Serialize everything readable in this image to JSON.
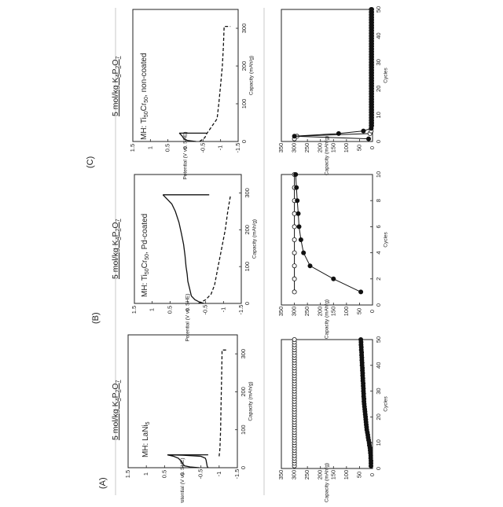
{
  "panels": [
    {
      "label": "(A)",
      "electrolyte": "5 mol/kg K2P2O7",
      "mh": "MH: LaNi5",
      "potential_chart": {
        "type": "line",
        "xlabel": "Capacity (mAh/g)",
        "ylabel": "Potential (V vs. SHE)",
        "xlim": [
          0,
          350
        ],
        "ylim": [
          -1.5,
          1.5
        ],
        "xticks": [
          0,
          100,
          200,
          300
        ],
        "yticks": [
          1.5,
          1.0,
          0.5,
          0.0,
          -0.5,
          -1.0,
          -1.5
        ],
        "series": [
          {
            "style": "solid",
            "x": [
              0,
              2,
              5,
              10,
              18,
              25,
              30,
              33,
              34,
              33,
              30,
              25,
              20,
              15,
              10,
              5,
              2,
              0
            ],
            "y": [
              -0.45,
              -0.2,
              -0.05,
              0.0,
              0.05,
              0.12,
              0.25,
              0.38,
              0.42,
              0.0,
              -0.5,
              -0.62,
              -0.64,
              -0.65,
              -0.66,
              -0.67,
              -0.68,
              -0.7
            ]
          },
          {
            "style": "solid",
            "x": [
              34,
              34
            ],
            "y": [
              0.42,
              -0.7
            ]
          },
          {
            "style": "dashed",
            "x": [
              30,
              50,
              100,
              150,
              200,
              250,
              300,
              310,
              310
            ],
            "y": [
              -1.0,
              -1.02,
              -1.04,
              -1.05,
              -1.06,
              -1.07,
              -1.08,
              -1.08,
              -1.24
            ]
          }
        ]
      },
      "cycle_chart": {
        "type": "scatter",
        "xlabel": "Cycles",
        "ylabel": "Capacity (mAh/g)",
        "xlim": [
          0,
          50
        ],
        "ylim": [
          0,
          350
        ],
        "xticks": [
          0,
          10,
          20,
          30,
          40,
          50
        ],
        "yticks": [
          350,
          300,
          250,
          200,
          150,
          100,
          50,
          0
        ],
        "series": [
          {
            "marker": "open",
            "x": [
              1,
              2,
              3,
              4,
              5,
              6,
              7,
              8,
              9,
              10,
              11,
              12,
              13,
              14,
              15,
              16,
              17,
              18,
              19,
              20,
              21,
              22,
              23,
              24,
              25,
              26,
              27,
              28,
              29,
              30,
              31,
              32,
              33,
              34,
              35,
              36,
              37,
              38,
              39,
              40,
              41,
              42,
              43,
              44,
              45,
              46,
              47,
              48,
              49,
              50
            ],
            "y": [
              300,
              300,
              300,
              300,
              300,
              300,
              300,
              300,
              300,
              300,
              300,
              300,
              300,
              300,
              300,
              300,
              300,
              300,
              300,
              300,
              300,
              300,
              300,
              300,
              300,
              300,
              300,
              300,
              300,
              300,
              300,
              300,
              300,
              300,
              300,
              300,
              300,
              300,
              300,
              300,
              300,
              300,
              300,
              300,
              300,
              300,
              300,
              300,
              300,
              300
            ]
          },
          {
            "marker": "filled",
            "x": [
              1,
              2,
              3,
              4,
              5,
              6,
              7,
              8,
              9,
              10,
              11,
              12,
              13,
              14,
              15,
              16,
              17,
              18,
              19,
              20,
              21,
              22,
              23,
              24,
              25,
              26,
              27,
              28,
              29,
              30,
              31,
              32,
              33,
              34,
              35,
              36,
              37,
              38,
              39,
              40,
              41,
              42,
              43,
              44,
              45,
              46,
              47,
              48,
              49,
              50
            ],
            "y": [
              6,
              6,
              6,
              7,
              7,
              8,
              9,
              10,
              12,
              13,
              15,
              17,
              18,
              20,
              22,
              23,
              24,
              25,
              26,
              27,
              28,
              29,
              30,
              31,
              32,
              33,
              33,
              34,
              34,
              35,
              35,
              36,
              36,
              37,
              37,
              38,
              38,
              39,
              39,
              40,
              40,
              41,
              41,
              42,
              42,
              43,
              43,
              44,
              44,
              45
            ]
          }
        ]
      }
    },
    {
      "label": "(B)",
      "electrolyte": "5 mol/kg K2P2O7",
      "mh": "MH: Ti50Cr50, Pd-coated",
      "potential_chart": {
        "type": "line",
        "xlabel": "Capacity (mAh/g)",
        "ylabel": "Potential (V vs. SHE)",
        "xlim": [
          0,
          350
        ],
        "ylim": [
          -1.5,
          1.5
        ],
        "xticks": [
          0,
          100,
          200,
          300
        ],
        "yticks": [
          1.5,
          1.0,
          0.5,
          0.0,
          -0.5,
          -1.0,
          -1.5
        ],
        "series": [
          {
            "style": "solid",
            "x": [
              0,
              5,
              10,
              20,
              40,
              60,
              80,
              100,
              130,
              160,
              190,
              220,
              250,
              270,
              280,
              290,
              295
            ],
            "y": [
              -0.45,
              -0.3,
              -0.2,
              -0.1,
              -0.05,
              0.0,
              0.02,
              0.05,
              0.08,
              0.12,
              0.18,
              0.25,
              0.35,
              0.45,
              0.55,
              0.65,
              0.7
            ]
          },
          {
            "style": "solid",
            "x": [
              295,
              295
            ],
            "y": [
              0.7,
              -0.6
            ]
          },
          {
            "style": "dashed",
            "x": [
              0,
              10,
              25,
              50,
              100,
              150,
              200,
              250,
              295
            ],
            "y": [
              -0.3,
              -0.5,
              -0.65,
              -0.75,
              -0.85,
              -0.95,
              -1.05,
              -1.12,
              -1.2
            ]
          }
        ]
      },
      "cycle_chart": {
        "type": "scatter",
        "xlabel": "Cycles",
        "ylabel": "Capacity (mAh/g)",
        "xlim": [
          0,
          10
        ],
        "ylim": [
          0,
          350
        ],
        "xticks": [
          0,
          2,
          4,
          6,
          8,
          10
        ],
        "yticks": [
          350,
          300,
          250,
          200,
          150,
          100,
          50,
          0
        ],
        "series": [
          {
            "marker": "open",
            "x": [
              1,
              2,
              3,
              4,
              5,
              6,
              7,
              8,
              9,
              10
            ],
            "y": [
              300,
              300,
              300,
              300,
              300,
              300,
              300,
              300,
              300,
              300
            ]
          },
          {
            "marker": "filled",
            "x": [
              1,
              2,
              3,
              4,
              5,
              6,
              7,
              8,
              9,
              10
            ],
            "y": [
              45,
              150,
              240,
              265,
              275,
              282,
              285,
              289,
              292,
              295
            ]
          }
        ]
      }
    },
    {
      "label": "(C)",
      "electrolyte": "5 mol/kg K2P2O7",
      "mh": "MH: Ti50Cr50, non-coated",
      "potential_chart": {
        "type": "line",
        "xlabel": "Capacity (mAh/g)",
        "ylabel": "Potential (V vs. SHE)",
        "xlim": [
          0,
          350
        ],
        "ylim": [
          -1.5,
          1.5
        ],
        "xticks": [
          0,
          100,
          200,
          300
        ],
        "yticks": [
          1.5,
          1.0,
          0.5,
          0.0,
          -0.5,
          -1.0,
          -1.5
        ],
        "series": [
          {
            "style": "solid",
            "x": [
              0,
              3,
              8,
              15,
              20,
              22
            ],
            "y": [
              -0.3,
              -0.05,
              0.05,
              0.1,
              0.15,
              0.18
            ]
          },
          {
            "style": "solid",
            "x": [
              22,
              22
            ],
            "y": [
              0.18,
              -0.6
            ]
          },
          {
            "style": "dashed",
            "x": [
              0,
              10,
              20,
              40,
              60,
              100,
              150,
              200,
              250,
              300,
              305,
              305
            ],
            "y": [
              -0.4,
              -0.55,
              -0.6,
              -0.75,
              -0.9,
              -0.95,
              -1.0,
              -1.05,
              -1.08,
              -1.1,
              -1.1,
              -1.28
            ]
          }
        ]
      },
      "cycle_chart": {
        "type": "scatter",
        "xlabel": "Cycles",
        "ylabel": "Capacity (mAh/g)",
        "xlim": [
          0,
          50
        ],
        "ylim": [
          0,
          350
        ],
        "xticks": [
          0,
          10,
          20,
          30,
          40,
          50
        ],
        "yticks": [
          350,
          300,
          250,
          200,
          150,
          100,
          50,
          0
        ],
        "series": [
          {
            "marker": "open",
            "x": [
              1,
              2,
              3,
              4,
              5,
              6,
              7,
              8,
              9,
              10,
              11,
              12,
              13,
              14,
              15,
              16,
              17,
              18,
              19,
              20,
              21,
              22,
              23,
              24,
              25,
              26,
              27,
              28,
              29,
              30,
              31,
              32,
              33,
              34,
              35,
              36,
              37,
              38,
              39,
              40,
              41,
              42,
              43,
              44,
              45,
              46,
              47,
              48,
              49,
              50
            ],
            "y": [
              300,
              290,
              10,
              5,
              5,
              5,
              5,
              5,
              5,
              5,
              5,
              5,
              5,
              5,
              5,
              5,
              5,
              5,
              5,
              5,
              5,
              5,
              5,
              5,
              5,
              5,
              5,
              5,
              5,
              5,
              5,
              5,
              5,
              5,
              5,
              5,
              5,
              5,
              5,
              5,
              5,
              5,
              5,
              5,
              5,
              5,
              5,
              5,
              5,
              5
            ]
          },
          {
            "marker": "filled",
            "x": [
              1,
              2,
              3,
              4,
              5,
              6,
              7,
              8,
              9,
              10,
              11,
              12,
              13,
              14,
              15,
              16,
              17,
              18,
              19,
              20,
              21,
              22,
              23,
              24,
              25,
              26,
              27,
              28,
              29,
              30,
              31,
              32,
              33,
              34,
              35,
              36,
              37,
              38,
              39,
              40,
              41,
              42,
              43,
              44,
              45,
              46,
              47,
              48,
              49,
              50
            ],
            "y": [
              15,
              300,
              130,
              35,
              5,
              3,
              3,
              3,
              3,
              3,
              3,
              3,
              3,
              3,
              3,
              3,
              3,
              3,
              3,
              3,
              3,
              3,
              3,
              3,
              3,
              3,
              3,
              3,
              3,
              3,
              3,
              3,
              3,
              3,
              3,
              3,
              3,
              3,
              3,
              3,
              3,
              3,
              3,
              3,
              3,
              3,
              3,
              3,
              3,
              3
            ]
          }
        ]
      }
    }
  ]
}
